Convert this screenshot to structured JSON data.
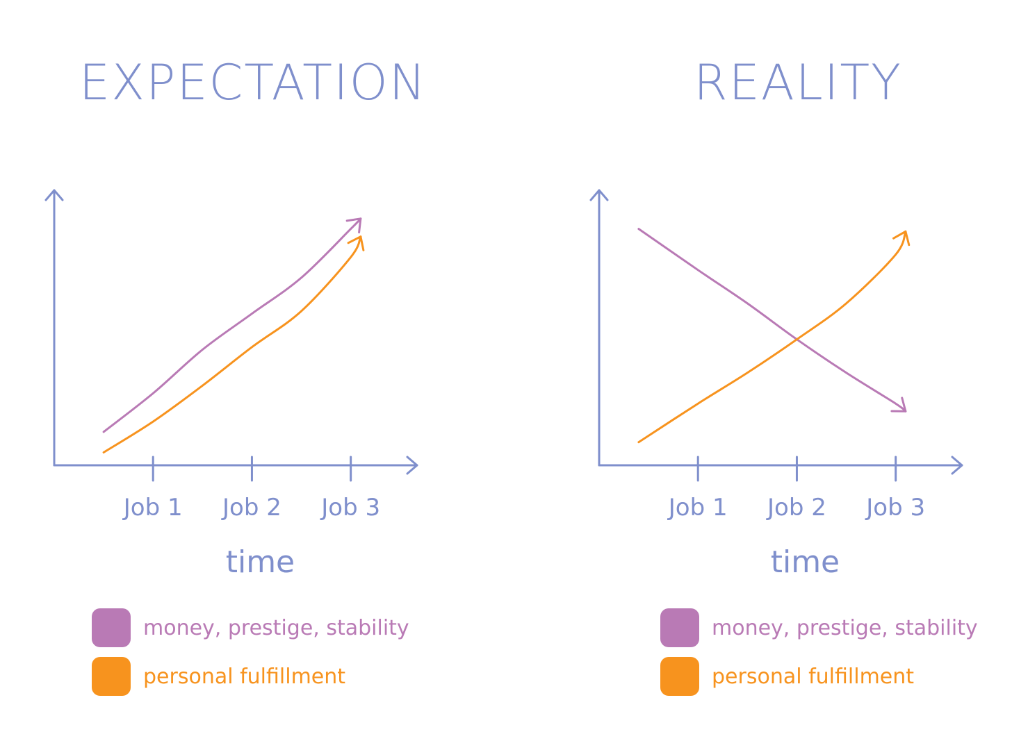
{
  "colors": {
    "axis": "#7f8fcc",
    "money": "#b97ab5",
    "fulfillment": "#f7931e"
  },
  "panels": [
    {
      "title": "EXPECTATION",
      "legend": [
        {
          "label": "money, prestige, stability",
          "color": "#b97ab5"
        },
        {
          "label": "personal fulfillment",
          "color": "#f7931e"
        }
      ]
    },
    {
      "title": "REALITY",
      "legend": [
        {
          "label": "money, prestige, stability",
          "color": "#b97ab5"
        },
        {
          "label": "personal fulfillment",
          "color": "#f7931e"
        }
      ]
    }
  ],
  "chart_data": [
    {
      "type": "line",
      "title": "EXPECTATION",
      "xlabel": "time",
      "ylabel": "",
      "categories": [
        "Job 1",
        "Job 2",
        "Job 3"
      ],
      "x": [
        0.5,
        1,
        1.5,
        2,
        2.5,
        3,
        3.1
      ],
      "xlim": [
        0,
        3.6
      ],
      "ylim": [
        0,
        10
      ],
      "series": [
        {
          "name": "money, prestige, stability",
          "color": "#b97ab5",
          "values": [
            1.3,
            2.8,
            4.5,
            5.9,
            7.3,
            9.2,
            9.6
          ]
        },
        {
          "name": "personal fulfillment",
          "color": "#f7931e",
          "values": [
            0.5,
            1.7,
            3.1,
            4.6,
            6.0,
            8.1,
            8.9
          ]
        }
      ]
    },
    {
      "type": "line",
      "title": "REALITY",
      "xlabel": "time",
      "ylabel": "",
      "categories": [
        "Job 1",
        "Job 2",
        "Job 3"
      ],
      "x": [
        0.4,
        1,
        1.5,
        2,
        2.5,
        3,
        3.1
      ],
      "xlim": [
        0,
        3.6
      ],
      "ylim": [
        0,
        10
      ],
      "series": [
        {
          "name": "money, prestige, stability",
          "color": "#b97ab5",
          "values": [
            9.2,
            7.6,
            6.3,
            4.9,
            3.6,
            2.4,
            2.1
          ]
        },
        {
          "name": "personal fulfillment",
          "color": "#f7931e",
          "values": [
            0.9,
            2.4,
            3.6,
            4.9,
            6.3,
            8.2,
            9.1
          ]
        }
      ]
    }
  ]
}
